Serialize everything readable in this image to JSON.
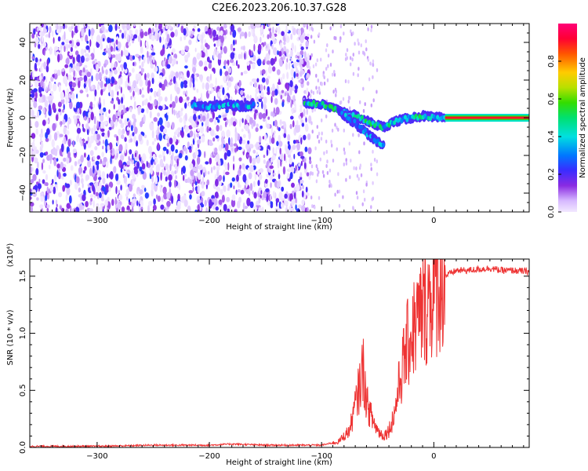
{
  "title": "C2E6.2023.206.10.37.G28",
  "chart_data": [
    {
      "type": "heatmap",
      "title": "C2E6.2023.206.10.37.G28",
      "xlabel": "Height of straight line (km)",
      "ylabel": "Frequency (Hz)",
      "xlim": [
        -360,
        85
      ],
      "ylim": [
        -50,
        50
      ],
      "x_ticks": [
        -300,
        -200,
        -100,
        0
      ],
      "y_ticks": [
        -40,
        -20,
        0,
        20,
        40
      ],
      "colorbar": {
        "label": "Normalized spectral amplitude",
        "range": [
          0,
          1
        ],
        "ticks": [
          "0.0",
          "0.2",
          "0.4",
          "0.6",
          "0.8"
        ]
      },
      "features": [
        {
          "segment": "noise",
          "x_range": [
            -360,
            -110
          ],
          "freq_range": [
            -50,
            50
          ],
          "amplitude": [
            0.0,
            0.25
          ]
        },
        {
          "segment": "signal",
          "x": [
            -215,
            -200,
            -185,
            -170,
            -160
          ],
          "freq": [
            7,
            6,
            7,
            6,
            7
          ],
          "amplitude": 0.4
        },
        {
          "segment": "signal",
          "x": [
            -115,
            -100,
            -85,
            -70,
            -55,
            -45,
            -35,
            -20,
            -10,
            0,
            10
          ],
          "freq": [
            8,
            7,
            4,
            1,
            -3,
            -5,
            -2,
            0,
            1,
            0,
            0
          ],
          "amplitude": 0.5
        },
        {
          "segment": "signal",
          "x": [
            -85,
            -70,
            -60,
            -50,
            -45
          ],
          "freq": [
            4,
            -3,
            -8,
            -13,
            -15
          ],
          "amplitude": 0.4
        },
        {
          "segment": "signal",
          "x": [
            10,
            85
          ],
          "freq": [
            0,
            0
          ],
          "amplitude": 0.9
        }
      ]
    },
    {
      "type": "line",
      "xlabel": "Height of straight line (km)",
      "ylabel": "SNR (10 * v/v)",
      "multiplier": "(x10⁴)",
      "xlim": [
        -360,
        85
      ],
      "ylim": [
        0,
        1.65
      ],
      "x_ticks": [
        -300,
        -200,
        -100,
        0
      ],
      "y_ticks": [
        "0.0",
        "0.5",
        "1.0",
        "1.5"
      ],
      "series": [
        {
          "color": "#ee3333",
          "x": [
            -360,
            -300,
            -250,
            -200,
            -180,
            -150,
            -100,
            -85,
            -75,
            -68,
            -63,
            -60,
            -55,
            -50,
            -45,
            -40,
            -35,
            -30,
            -25,
            -20,
            -15,
            -10,
            -5,
            0,
            5,
            10,
            20,
            30,
            40,
            50,
            60,
            70,
            85
          ],
          "y": [
            0.01,
            0.01,
            0.02,
            0.02,
            0.03,
            0.02,
            0.02,
            0.05,
            0.15,
            0.45,
            0.7,
            0.4,
            0.25,
            0.15,
            0.1,
            0.15,
            0.3,
            0.6,
            0.85,
            1.0,
            1.1,
            1.2,
            1.3,
            1.35,
            1.45,
            1.5,
            1.55,
            1.55,
            1.56,
            1.57,
            1.55,
            1.55,
            1.54
          ]
        }
      ]
    }
  ]
}
